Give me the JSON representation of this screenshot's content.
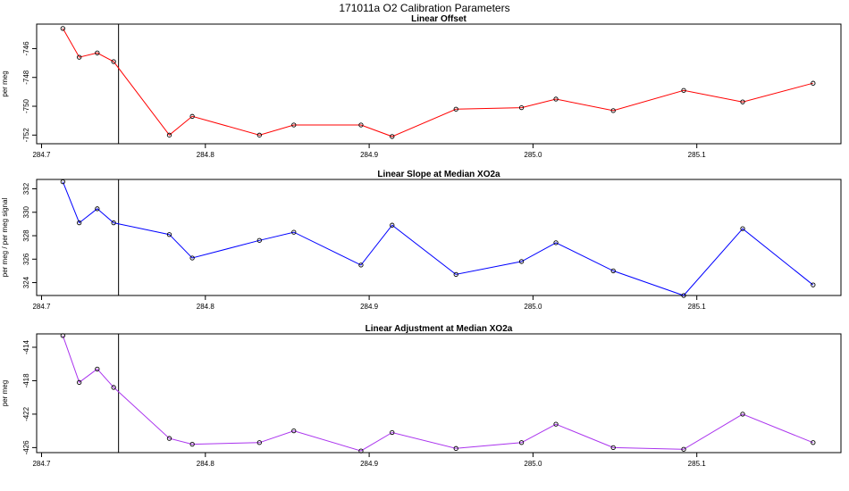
{
  "figure": {
    "title": "171011a   O2 Calibration Parameters"
  },
  "chart_data": [
    {
      "type": "line",
      "title": "Linear Offset",
      "xlabel": "",
      "ylabel": "per meg",
      "xlim": [
        284.697,
        285.188
      ],
      "ylim": [
        -752.6,
        -744.3
      ],
      "xticks": [
        284.7,
        284.8,
        284.9,
        285.0,
        285.1
      ],
      "xtick_labels": [
        "284.7",
        "284.8",
        "284.9",
        "285.0",
        "285.1"
      ],
      "yticks": [
        -746,
        -748,
        -750,
        -752
      ],
      "ytick_labels": [
        "-746",
        "-748",
        "-750",
        "-752"
      ],
      "vline_x": 284.747,
      "series": [
        {
          "color": "#ff0000",
          "x": [
            284.713,
            284.723,
            284.734,
            284.744,
            284.778,
            284.792,
            284.833,
            284.854,
            284.895,
            284.914,
            284.953,
            284.993,
            285.014,
            285.049,
            285.092,
            285.128,
            285.171
          ],
          "y": [
            -744.6,
            -746.6,
            -746.3,
            -746.9,
            -752.0,
            -750.7,
            -752.0,
            -751.3,
            -751.3,
            -752.1,
            -750.2,
            -750.1,
            -749.5,
            -750.3,
            -748.9,
            -749.7,
            -748.4
          ]
        }
      ]
    },
    {
      "type": "line",
      "title": "Linear Slope at Median XO2a",
      "xlabel": "",
      "ylabel": "per meg / per meg signal",
      "xlim": [
        284.697,
        285.188
      ],
      "ylim": [
        322.9,
        332.8
      ],
      "xticks": [
        284.7,
        284.8,
        284.9,
        285.0,
        285.1
      ],
      "xtick_labels": [
        "284.7",
        "284.8",
        "284.9",
        "285.0",
        "285.1"
      ],
      "yticks": [
        324,
        326,
        328,
        330,
        332
      ],
      "ytick_labels": [
        "324",
        "326",
        "328",
        "330",
        "332"
      ],
      "vline_x": 284.747,
      "series": [
        {
          "color": "#0000ff",
          "x": [
            284.713,
            284.723,
            284.734,
            284.744,
            284.778,
            284.792,
            284.833,
            284.854,
            284.895,
            284.914,
            284.953,
            284.993,
            285.014,
            285.049,
            285.092,
            285.128,
            285.171
          ],
          "y": [
            332.6,
            329.1,
            330.3,
            329.1,
            328.1,
            326.1,
            327.6,
            328.3,
            325.5,
            328.9,
            324.7,
            325.8,
            327.4,
            325.0,
            322.9,
            328.6,
            323.8
          ]
        }
      ]
    },
    {
      "type": "line",
      "title": "Linear Adjustment at Median XO2a",
      "xlabel": "",
      "ylabel": "per meg",
      "xlim": [
        284.697,
        285.188
      ],
      "ylim": [
        -426.6,
        -412.4
      ],
      "xticks": [
        284.7,
        284.8,
        284.9,
        285.0,
        285.1
      ],
      "xtick_labels": [
        "284.7",
        "284.8",
        "284.9",
        "285.0",
        "285.1"
      ],
      "yticks": [
        -414,
        -418,
        -422,
        -426
      ],
      "ytick_labels": [
        "-414",
        "-418",
        "-422",
        "-426"
      ],
      "vline_x": 284.747,
      "series": [
        {
          "color": "#aa33ee",
          "x": [
            284.713,
            284.723,
            284.734,
            284.744,
            284.778,
            284.792,
            284.833,
            284.854,
            284.895,
            284.914,
            284.953,
            284.993,
            285.014,
            285.049,
            285.092,
            285.128,
            285.171
          ],
          "y": [
            -412.6,
            -418.2,
            -416.6,
            -418.8,
            -424.9,
            -425.6,
            -425.4,
            -424.0,
            -426.4,
            -424.2,
            -426.1,
            -425.4,
            -423.2,
            -426.0,
            -426.2,
            -422.0,
            -425.4
          ]
        }
      ]
    }
  ]
}
